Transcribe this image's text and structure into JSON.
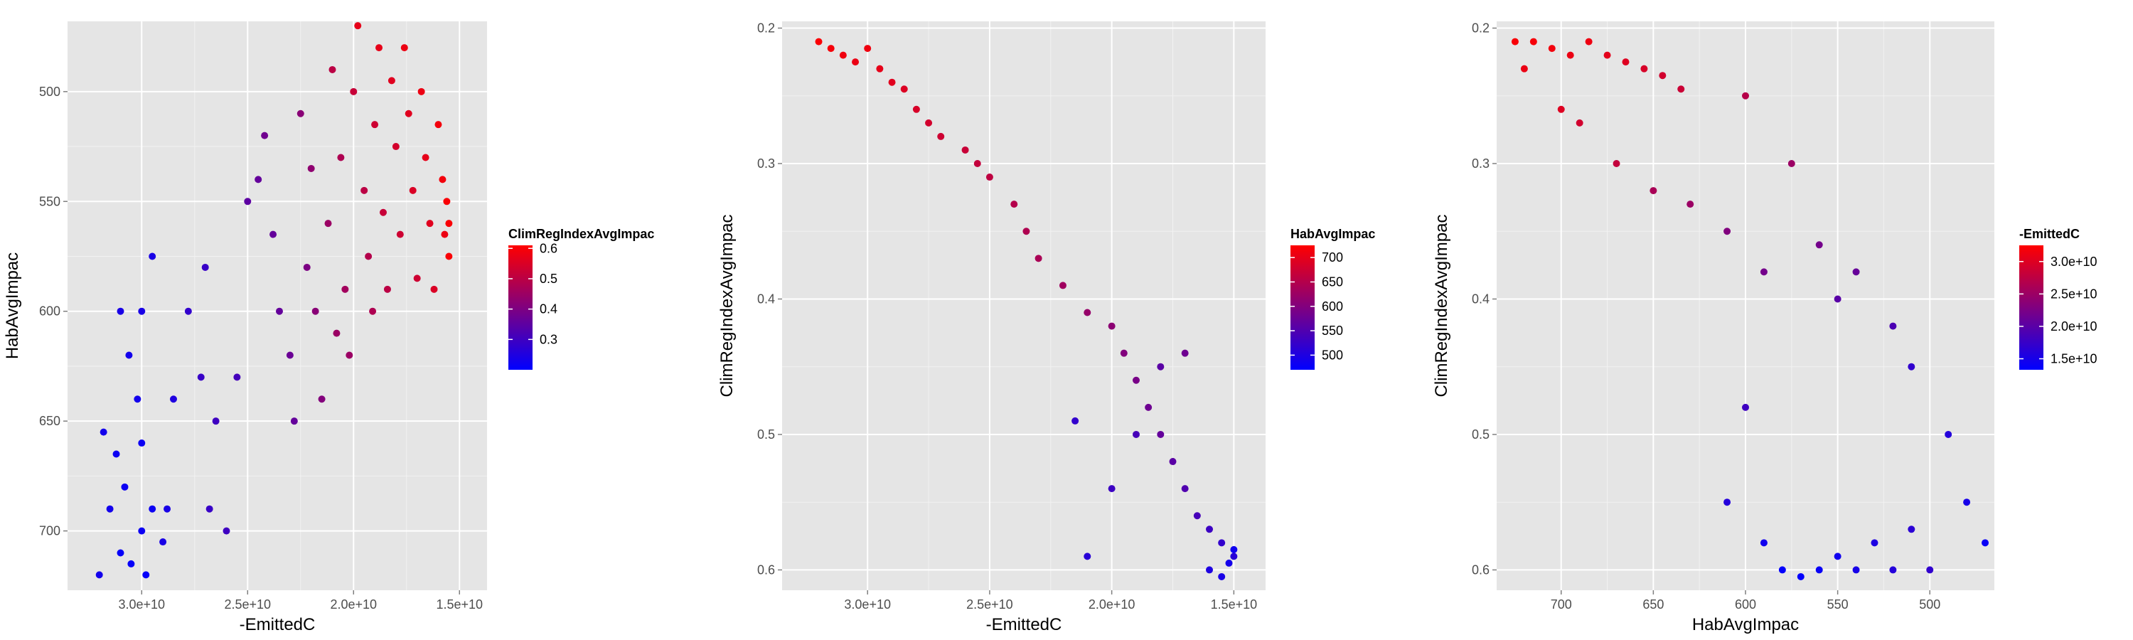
{
  "chart_data": [
    {
      "type": "scatter",
      "xlabel": "-EmittedC",
      "ylabel": "HabAvgImpac",
      "x_reversed": true,
      "y_reversed": true,
      "xlim": [
        33500000000.0,
        13700000000.0
      ],
      "ylim": [
        468,
        727
      ],
      "x_ticks": [
        {
          "value": 30000000000.0,
          "label": "3.0e+10"
        },
        {
          "value": 25000000000.0,
          "label": "2.5e+10"
        },
        {
          "value": 20000000000.0,
          "label": "2.0e+10"
        },
        {
          "value": 15000000000.0,
          "label": "1.5e+10"
        }
      ],
      "y_ticks": [
        {
          "value": 500,
          "label": "500"
        },
        {
          "value": 550,
          "label": "550"
        },
        {
          "value": 600,
          "label": "600"
        },
        {
          "value": 650,
          "label": "650"
        },
        {
          "value": 700,
          "label": "700"
        }
      ],
      "color_scale": {
        "title": "ClimRegIndexAvgImpac",
        "low_color": "#0000ff",
        "high_color": "#ff0000",
        "min": 0.2,
        "max": 0.61,
        "ticks": [
          {
            "value": 0.3,
            "label": "0.3"
          },
          {
            "value": 0.4,
            "label": "0.4"
          },
          {
            "value": 0.5,
            "label": "0.5"
          },
          {
            "value": 0.6,
            "label": "0.6"
          }
        ]
      },
      "points": [
        [
          29800000000.0,
          720,
          0.21
        ],
        [
          30500000000.0,
          715,
          0.21
        ],
        [
          31000000000.0,
          710,
          0.21
        ],
        [
          30000000000.0,
          700,
          0.22
        ],
        [
          29500000000.0,
          690,
          0.22
        ],
        [
          30800000000.0,
          680,
          0.22
        ],
        [
          31200000000.0,
          665,
          0.22
        ],
        [
          30000000000.0,
          660,
          0.22
        ],
        [
          31500000000.0,
          690,
          0.23
        ],
        [
          32000000000.0,
          720,
          0.23
        ],
        [
          31800000000.0,
          655,
          0.23
        ],
        [
          30200000000.0,
          640,
          0.23
        ],
        [
          30600000000.0,
          620,
          0.23
        ],
        [
          30000000000.0,
          600,
          0.24
        ],
        [
          29500000000.0,
          575,
          0.24
        ],
        [
          31000000000.0,
          600,
          0.24
        ],
        [
          28500000000.0,
          640,
          0.25
        ],
        [
          28800000000.0,
          690,
          0.24
        ],
        [
          29000000000.0,
          705,
          0.24
        ],
        [
          27800000000.0,
          600,
          0.28
        ],
        [
          27000000000.0,
          580,
          0.29
        ],
        [
          27200000000.0,
          630,
          0.29
        ],
        [
          26500000000.0,
          650,
          0.3
        ],
        [
          26800000000.0,
          690,
          0.29
        ],
        [
          26000000000.0,
          700,
          0.3
        ],
        [
          25500000000.0,
          630,
          0.31
        ],
        [
          25000000000.0,
          550,
          0.35
        ],
        [
          24500000000.0,
          540,
          0.36
        ],
        [
          24200000000.0,
          520,
          0.38
        ],
        [
          23800000000.0,
          565,
          0.36
        ],
        [
          23500000000.0,
          600,
          0.36
        ],
        [
          23000000000.0,
          620,
          0.37
        ],
        [
          22800000000.0,
          650,
          0.36
        ],
        [
          22500000000.0,
          510,
          0.42
        ],
        [
          22200000000.0,
          580,
          0.4
        ],
        [
          22000000000.0,
          535,
          0.43
        ],
        [
          21800000000.0,
          600,
          0.42
        ],
        [
          21500000000.0,
          640,
          0.41
        ],
        [
          21200000000.0,
          560,
          0.45
        ],
        [
          21000000000.0,
          490,
          0.5
        ],
        [
          20800000000.0,
          610,
          0.45
        ],
        [
          20600000000.0,
          530,
          0.48
        ],
        [
          20400000000.0,
          590,
          0.46
        ],
        [
          20200000000.0,
          620,
          0.45
        ],
        [
          20000000000.0,
          500,
          0.52
        ],
        [
          19800000000.0,
          470,
          0.57
        ],
        [
          19500000000.0,
          545,
          0.5
        ],
        [
          19300000000.0,
          575,
          0.49
        ],
        [
          19100000000.0,
          600,
          0.48
        ],
        [
          19000000000.0,
          515,
          0.53
        ],
        [
          18800000000.0,
          480,
          0.57
        ],
        [
          18600000000.0,
          555,
          0.52
        ],
        [
          18400000000.0,
          590,
          0.5
        ],
        [
          18200000000.0,
          495,
          0.56
        ],
        [
          18000000000.0,
          525,
          0.54
        ],
        [
          17800000000.0,
          565,
          0.53
        ],
        [
          17600000000.0,
          480,
          0.58
        ],
        [
          17400000000.0,
          510,
          0.56
        ],
        [
          17200000000.0,
          545,
          0.55
        ],
        [
          17000000000.0,
          585,
          0.53
        ],
        [
          16800000000.0,
          500,
          0.58
        ],
        [
          16600000000.0,
          530,
          0.57
        ],
        [
          16400000000.0,
          560,
          0.56
        ],
        [
          16200000000.0,
          590,
          0.55
        ],
        [
          16000000000.0,
          515,
          0.59
        ],
        [
          15800000000.0,
          540,
          0.59
        ],
        [
          15700000000.0,
          565,
          0.58
        ],
        [
          15600000000.0,
          550,
          0.6
        ],
        [
          15500000000.0,
          560,
          0.6
        ],
        [
          15500000000.0,
          575,
          0.6
        ]
      ]
    },
    {
      "type": "scatter",
      "xlabel": "-EmittedC",
      "ylabel": "ClimRegIndexAvgImpac",
      "x_reversed": true,
      "y_reversed": true,
      "xlim": [
        33500000000.0,
        13700000000.0
      ],
      "ylim": [
        0.195,
        0.615
      ],
      "x_ticks": [
        {
          "value": 30000000000.0,
          "label": "3.0e+10"
        },
        {
          "value": 25000000000.0,
          "label": "2.5e+10"
        },
        {
          "value": 20000000000.0,
          "label": "2.0e+10"
        },
        {
          "value": 15000000000.0,
          "label": "1.5e+10"
        }
      ],
      "y_ticks": [
        {
          "value": 0.2,
          "label": "0.2"
        },
        {
          "value": 0.3,
          "label": "0.3"
        },
        {
          "value": 0.4,
          "label": "0.4"
        },
        {
          "value": 0.5,
          "label": "0.5"
        },
        {
          "value": 0.6,
          "label": "0.6"
        }
      ],
      "color_scale": {
        "title": "HabAvgImpac",
        "low_color": "#0000ff",
        "high_color": "#ff0000",
        "min": 470,
        "max": 725,
        "ticks": [
          {
            "value": 500,
            "label": "500"
          },
          {
            "value": 550,
            "label": "550"
          },
          {
            "value": 600,
            "label": "600"
          },
          {
            "value": 650,
            "label": "650"
          },
          {
            "value": 700,
            "label": "700"
          }
        ]
      },
      "points": [
        [
          32000000000.0,
          0.21,
          720
        ],
        [
          31500000000.0,
          0.215,
          715
        ],
        [
          31000000000.0,
          0.22,
          710
        ],
        [
          30500000000.0,
          0.225,
          705
        ],
        [
          30000000000.0,
          0.215,
          710
        ],
        [
          29500000000.0,
          0.23,
          700
        ],
        [
          29000000000.0,
          0.24,
          695
        ],
        [
          28500000000.0,
          0.245,
          690
        ],
        [
          28000000000.0,
          0.26,
          685
        ],
        [
          27500000000.0,
          0.27,
          680
        ],
        [
          27000000000.0,
          0.28,
          675
        ],
        [
          26000000000.0,
          0.29,
          670
        ],
        [
          25500000000.0,
          0.3,
          665
        ],
        [
          25000000000.0,
          0.31,
          660
        ],
        [
          24000000000.0,
          0.33,
          650
        ],
        [
          23500000000.0,
          0.35,
          645
        ],
        [
          23000000000.0,
          0.37,
          640
        ],
        [
          22000000000.0,
          0.39,
          630
        ],
        [
          21000000000.0,
          0.41,
          620
        ],
        [
          20000000000.0,
          0.42,
          610
        ],
        [
          19500000000.0,
          0.44,
          600
        ],
        [
          19000000000.0,
          0.46,
          590
        ],
        [
          18500000000.0,
          0.48,
          580
        ],
        [
          18000000000.0,
          0.5,
          570
        ],
        [
          17500000000.0,
          0.52,
          560
        ],
        [
          17000000000.0,
          0.54,
          550
        ],
        [
          16500000000.0,
          0.56,
          540
        ],
        [
          16000000000.0,
          0.57,
          530
        ],
        [
          15500000000.0,
          0.58,
          520
        ],
        [
          15000000000.0,
          0.59,
          510
        ],
        [
          16000000000.0,
          0.6,
          500
        ],
        [
          15500000000.0,
          0.605,
          495
        ],
        [
          15200000000.0,
          0.595,
          490
        ],
        [
          15000000000.0,
          0.585,
          485
        ],
        [
          17000000000.0,
          0.44,
          580
        ],
        [
          18000000000.0,
          0.45,
          560
        ],
        [
          19000000000.0,
          0.5,
          540
        ],
        [
          20000000000.0,
          0.54,
          530
        ],
        [
          21500000000.0,
          0.49,
          520
        ],
        [
          21000000000.0,
          0.59,
          510
        ]
      ]
    },
    {
      "type": "scatter",
      "xlabel": "HabAvgImpac",
      "ylabel": "ClimRegIndexAvgImpac",
      "x_reversed": true,
      "y_reversed": true,
      "xlim": [
        735,
        465
      ],
      "ylim": [
        0.195,
        0.615
      ],
      "x_ticks": [
        {
          "value": 700,
          "label": "700"
        },
        {
          "value": 650,
          "label": "650"
        },
        {
          "value": 600,
          "label": "600"
        },
        {
          "value": 550,
          "label": "550"
        },
        {
          "value": 500,
          "label": "500"
        }
      ],
      "y_ticks": [
        {
          "value": 0.2,
          "label": "0.2"
        },
        {
          "value": 0.3,
          "label": "0.3"
        },
        {
          "value": 0.4,
          "label": "0.4"
        },
        {
          "value": 0.5,
          "label": "0.5"
        },
        {
          "value": 0.6,
          "label": "0.6"
        }
      ],
      "color_scale": {
        "title": "-EmittedC",
        "low_color": "#0000ff",
        "high_color": "#ff0000",
        "min": 13300000000.0,
        "max": 32500000000.0,
        "ticks": [
          {
            "value": 15000000000.0,
            "label": "1.5e+10"
          },
          {
            "value": 20000000000.0,
            "label": "2.0e+10"
          },
          {
            "value": 25000000000.0,
            "label": "2.5e+10"
          },
          {
            "value": 30000000000.0,
            "label": "3.0e+10"
          }
        ]
      },
      "points": [
        [
          725,
          0.21,
          32000000000.0
        ],
        [
          715,
          0.21,
          31800000000.0
        ],
        [
          705,
          0.215,
          31500000000.0
        ],
        [
          695,
          0.22,
          31000000000.0
        ],
        [
          685,
          0.21,
          31200000000.0
        ],
        [
          675,
          0.22,
          30500000000.0
        ],
        [
          665,
          0.225,
          30000000000.0
        ],
        [
          655,
          0.23,
          29500000000.0
        ],
        [
          645,
          0.235,
          29000000000.0
        ],
        [
          635,
          0.245,
          28500000000.0
        ],
        [
          720,
          0.23,
          31000000000.0
        ],
        [
          700,
          0.26,
          30000000000.0
        ],
        [
          690,
          0.27,
          29000000000.0
        ],
        [
          670,
          0.3,
          28000000000.0
        ],
        [
          650,
          0.32,
          26000000000.0
        ],
        [
          630,
          0.33,
          25000000000.0
        ],
        [
          610,
          0.35,
          23000000000.0
        ],
        [
          600,
          0.25,
          27000000000.0
        ],
        [
          590,
          0.38,
          22000000000.0
        ],
        [
          575,
          0.3,
          25000000000.0
        ],
        [
          560,
          0.36,
          22000000000.0
        ],
        [
          550,
          0.4,
          20000000000.0
        ],
        [
          540,
          0.38,
          21000000000.0
        ],
        [
          520,
          0.42,
          19000000000.0
        ],
        [
          510,
          0.45,
          17000000000.0
        ],
        [
          490,
          0.5,
          16000000000.0
        ],
        [
          480,
          0.55,
          15000000000.0
        ],
        [
          470,
          0.58,
          14000000000.0
        ],
        [
          600,
          0.48,
          18000000000.0
        ],
        [
          610,
          0.55,
          16000000000.0
        ],
        [
          590,
          0.58,
          14500000000.0
        ],
        [
          580,
          0.6,
          13500000000.0
        ],
        [
          570,
          0.605,
          13500000000.0
        ],
        [
          560,
          0.6,
          14000000000.0
        ],
        [
          550,
          0.59,
          14500000000.0
        ],
        [
          540,
          0.6,
          15000000000.0
        ],
        [
          530,
          0.58,
          15500000000.0
        ],
        [
          520,
          0.6,
          16000000000.0
        ],
        [
          510,
          0.57,
          16500000000.0
        ],
        [
          500,
          0.6,
          17000000000.0
        ]
      ]
    }
  ]
}
